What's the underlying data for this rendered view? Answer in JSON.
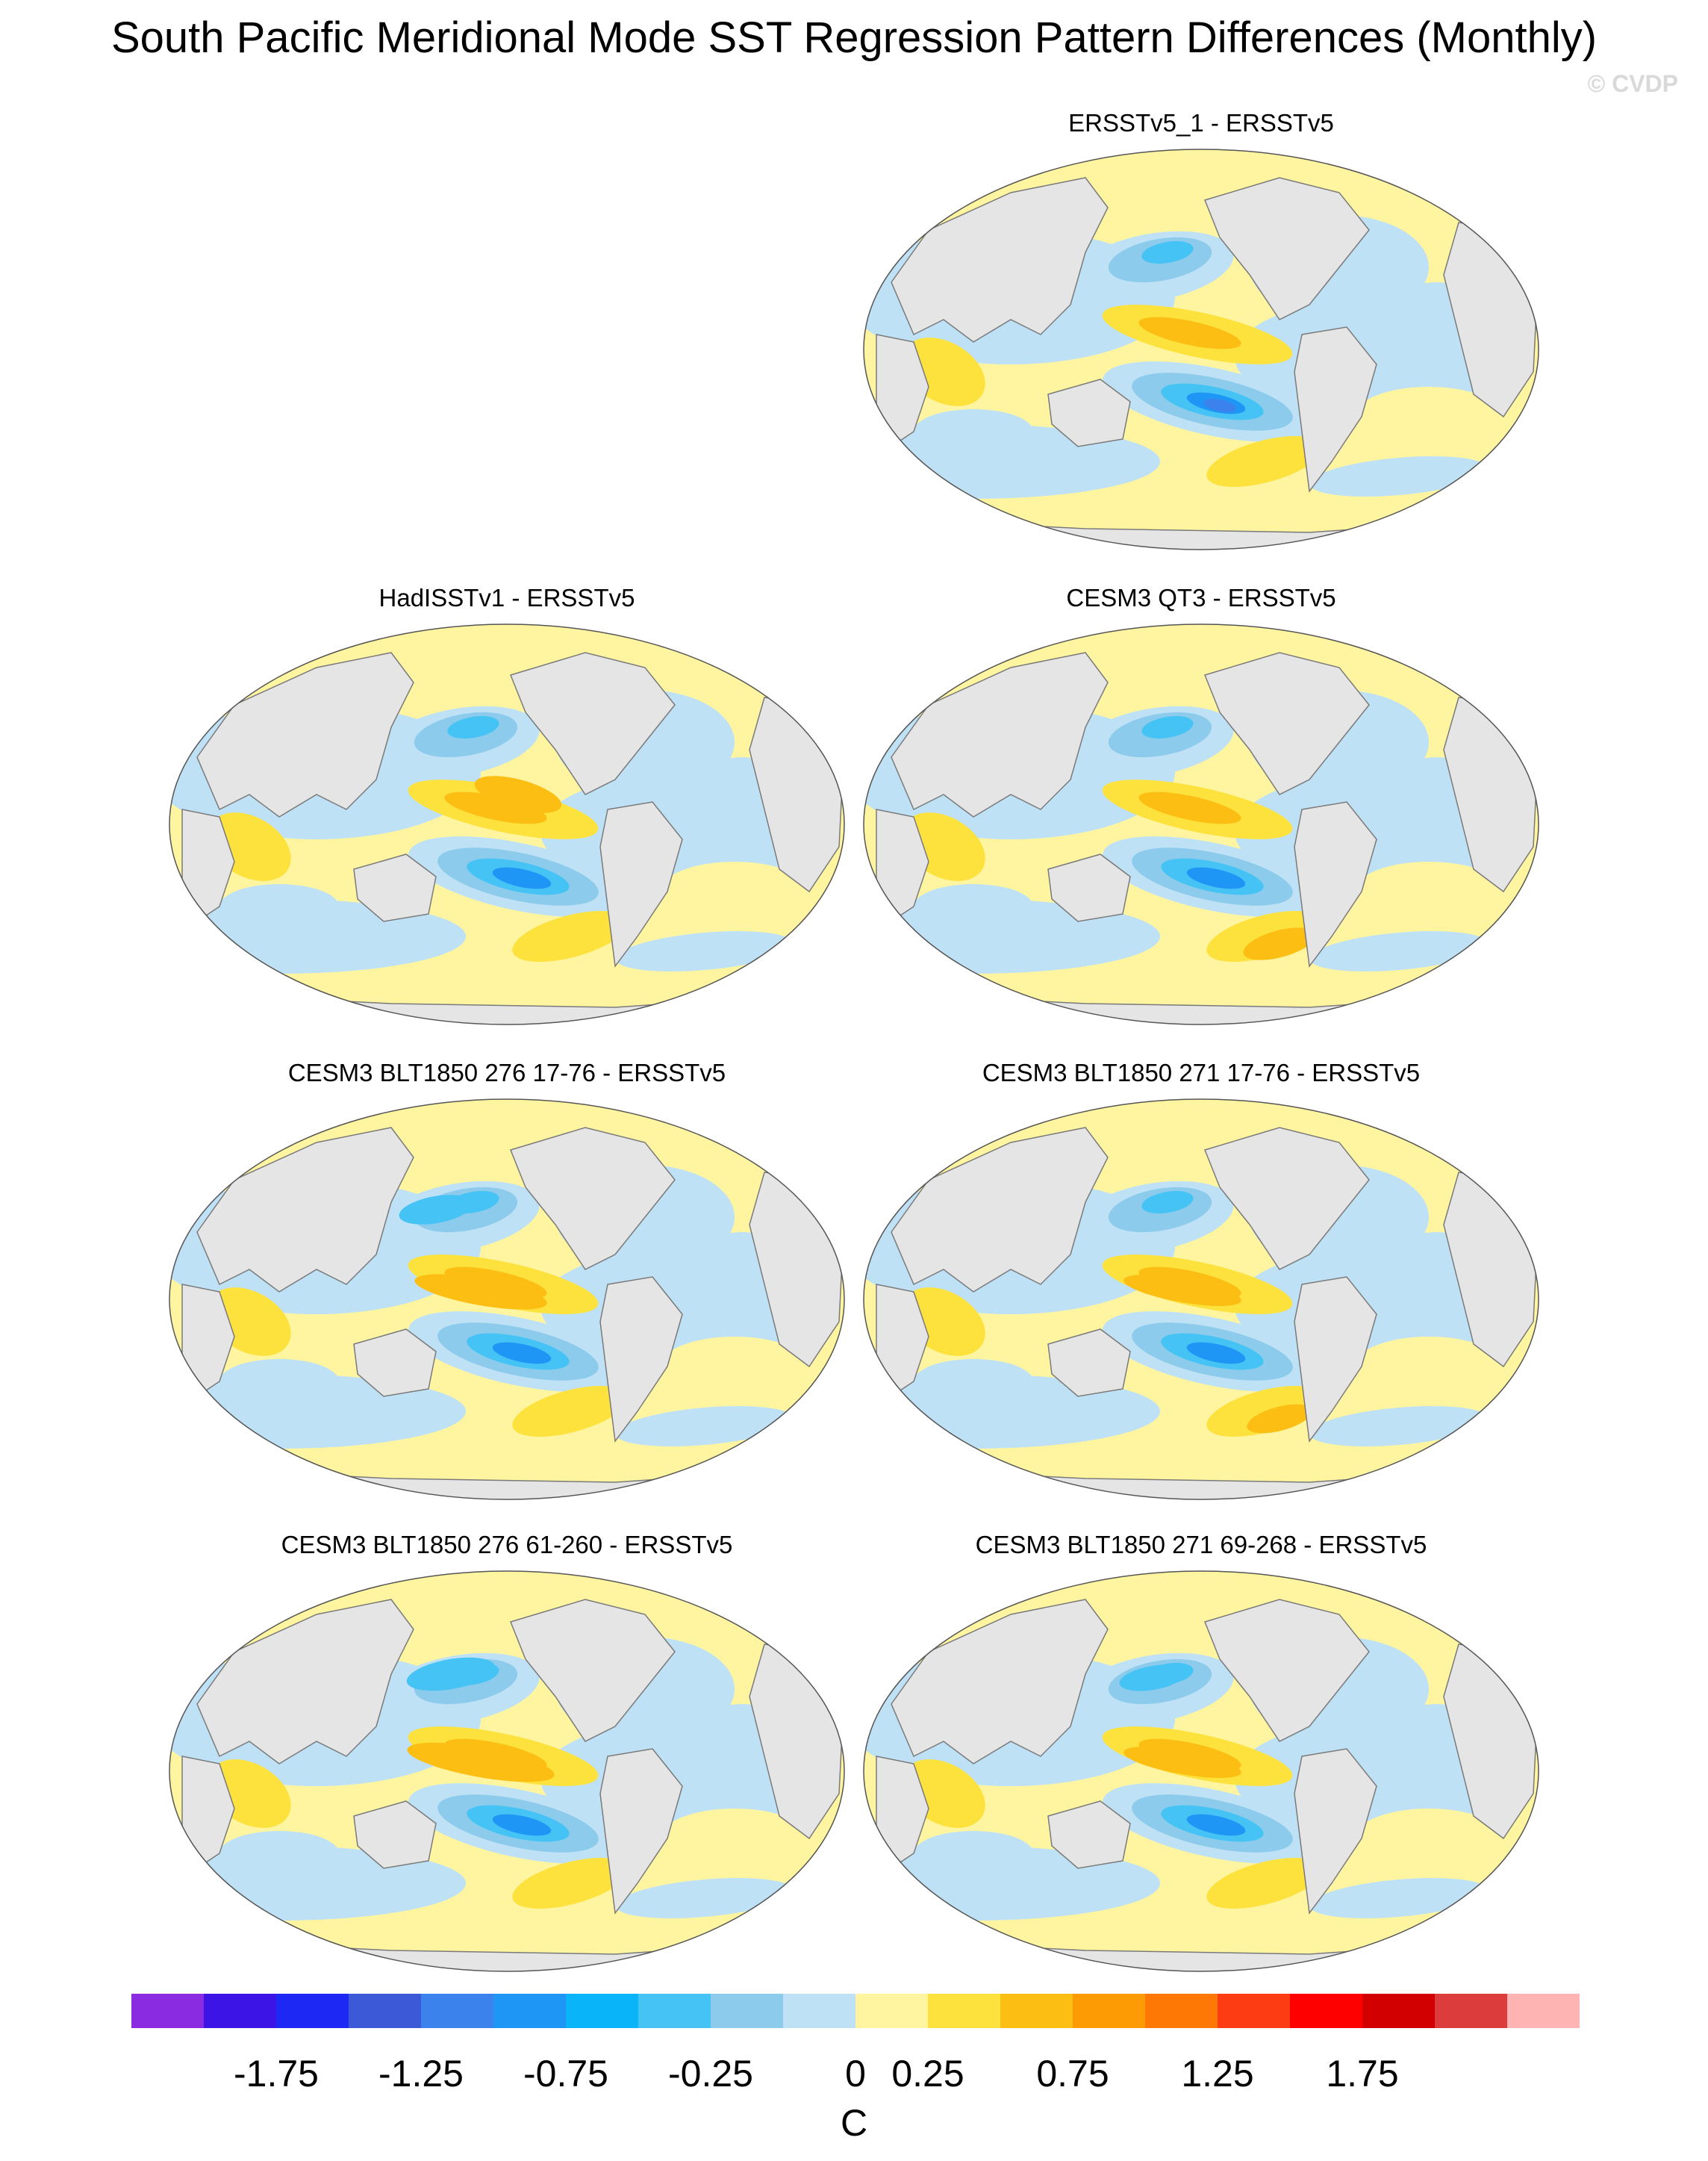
{
  "figure": {
    "title": "South Pacific Meridional Mode SST Regression Pattern Differences (Monthly)",
    "credit": "© CVDP"
  },
  "panels": [
    {
      "id": "p1",
      "title": "ERSSTv5_1 - ERSSTv5",
      "variant": "obs1"
    },
    {
      "id": "p2",
      "title": "HadISSTv1 - ERSSTv5",
      "variant": "had"
    },
    {
      "id": "p3",
      "title": "CESM3 QT3 - ERSSTv5",
      "variant": "qt3"
    },
    {
      "id": "p4",
      "title": "CESM3 BLT1850 276 17-76 - ERSSTv5",
      "variant": "blt276a"
    },
    {
      "id": "p5",
      "title": "CESM3 BLT1850 271 17-76 - ERSSTv5",
      "variant": "blt271a"
    },
    {
      "id": "p6",
      "title": "CESM3 BLT1850 276 61-260 - ERSSTv5",
      "variant": "blt276b"
    },
    {
      "id": "p7",
      "title": "CESM3 BLT1850 271 69-268 - ERSSTv5",
      "variant": "blt271b"
    }
  ],
  "colorbar": {
    "unit": "C",
    "colors": [
      "#8a2be2",
      "#3c14e6",
      "#1e28f5",
      "#3c5ad7",
      "#3c82ec",
      "#1e96f5",
      "#0ab4f8",
      "#46c3f5",
      "#8ccbeb",
      "#bee1f5",
      "#fff5a0",
      "#fde13c",
      "#fdbe14",
      "#fd9b05",
      "#fd7805",
      "#fd3c14",
      "#ff0000",
      "#d20000",
      "#dc3c3c",
      "#ffb4b4"
    ],
    "tick_labels": [
      "-1.75",
      "-1.25",
      "-0.75",
      "-0.25",
      "0",
      "0.25",
      "0.75",
      "1.25",
      "1.75"
    ],
    "tick_boundaries": [
      2,
      4,
      6,
      8,
      10,
      11,
      13,
      15,
      17
    ]
  },
  "map_colors": {
    "land": "#e5e5e5",
    "coast": "#7a7a7a",
    "warm": "#fff5a0",
    "warm2": "#fde13c",
    "warm3": "#fdbe14",
    "cool": "#bee1f5",
    "cool2": "#8ccbeb",
    "cool3": "#46c3f5",
    "cool4": "#1e96f5",
    "cool5": "#3c82ec"
  }
}
